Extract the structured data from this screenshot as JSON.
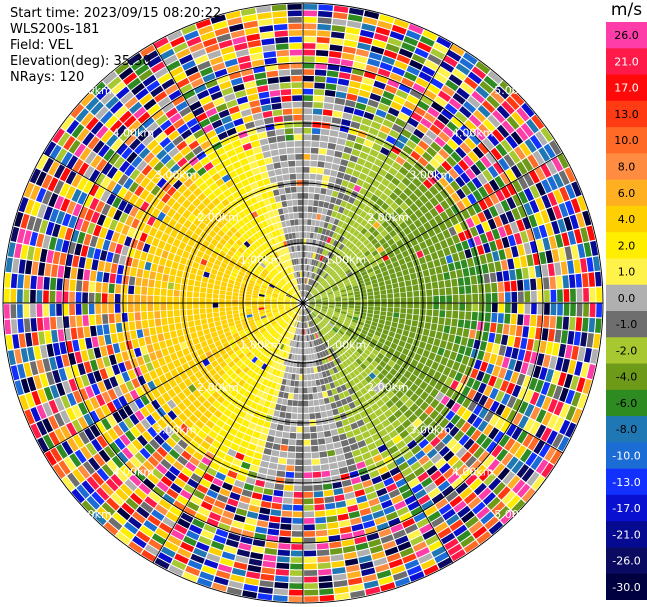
{
  "header": {
    "start_time": "Start time: 2023/09/15 08:20:22",
    "instrument": "WLS200s-181",
    "field": "Field: VEL",
    "elevation": "Elevation(deg): 35.30",
    "nrays": "NRays: 120"
  },
  "chart_data": {
    "type": "heatmap",
    "subtype": "ppi_polar_scan",
    "field": "VEL",
    "units": "m/s",
    "elevation_deg": 35.3,
    "nrays": 120,
    "range_rings_km": [
      1.0,
      2.0,
      3.0,
      4.0,
      5.0
    ],
    "range_ring_labels": [
      "1.00km",
      "2.00km",
      "3.00km",
      "4.00km",
      "5.00km"
    ],
    "spokes_deg": [
      0,
      30,
      60,
      90,
      120,
      150,
      180,
      210,
      240,
      270,
      300,
      330
    ],
    "pattern": {
      "positive_side": "west (yellow/orange, +2 to +4 m/s)",
      "negative_side": "east (green, -2 to -6 m/s)",
      "zero_band": "gray along north-south axis",
      "far_range": "noisy random speckle beyond ~3.5 km"
    },
    "colorbar": {
      "title": "m/s",
      "ticks": [
        "26.0",
        "21.0",
        "17.0",
        "13.0",
        "10.0",
        "8.0",
        "6.0",
        "4.0",
        "2.0",
        "1.0",
        "0.0",
        "-1.0",
        "-2.0",
        "-4.0",
        "-6.0",
        "-8.0",
        "-10.0",
        "-13.0",
        "-17.0",
        "-21.0",
        "-26.0",
        "-30.0"
      ],
      "colors": [
        "#ff3da8",
        "#ff1a4a",
        "#ff0a0a",
        "#ff3b14",
        "#ff6a26",
        "#ff8c40",
        "#ffb020",
        "#ffd000",
        "#ffee00",
        "#fff24a",
        "#b0b0b0",
        "#6e6e6e",
        "#a8c832",
        "#6e9a1a",
        "#2e8b22",
        "#1f78b4",
        "#1c6cd6",
        "#1230ff",
        "#0a10d0",
        "#060a90",
        "#0a0a60",
        "#000040"
      ]
    }
  }
}
